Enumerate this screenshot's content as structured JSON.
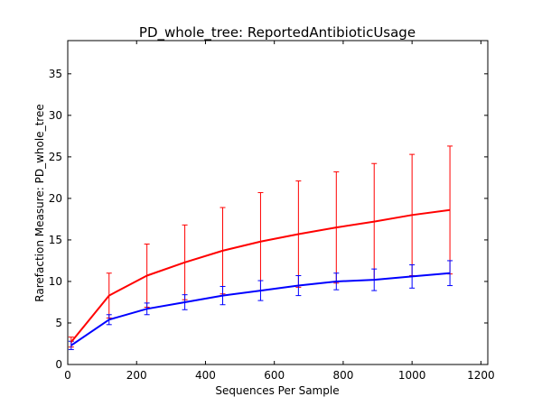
{
  "chart_data": {
    "type": "line",
    "title": "PD_whole_tree: ReportedAntibioticUsage",
    "xlabel": "Sequences Per Sample",
    "ylabel": "Rarefaction Measure: PD_whole_tree",
    "xlim": [
      0,
      1220
    ],
    "ylim": [
      0,
      39
    ],
    "x_ticks": [
      0,
      200,
      400,
      600,
      800,
      1000,
      1200
    ],
    "y_ticks": [
      0,
      5,
      10,
      15,
      20,
      25,
      30,
      35
    ],
    "grid": false,
    "x": [
      10,
      120,
      230,
      340,
      450,
      560,
      670,
      780,
      890,
      1000,
      1110
    ],
    "series": [
      {
        "color": "#ff0000",
        "values": [
          2.7,
          8.3,
          10.7,
          12.3,
          13.7,
          14.8,
          15.7,
          16.5,
          17.2,
          18.0,
          18.6
        ],
        "error": [
          0.6,
          2.7,
          3.8,
          4.5,
          5.2,
          5.9,
          6.4,
          6.7,
          7.0,
          7.3,
          7.7
        ]
      },
      {
        "color": "#0000ff",
        "values": [
          2.3,
          5.4,
          6.7,
          7.5,
          8.3,
          8.9,
          9.5,
          10.0,
          10.2,
          10.6,
          11.0
        ],
        "error": [
          0.5,
          0.6,
          0.7,
          0.9,
          1.1,
          1.2,
          1.2,
          1.0,
          1.3,
          1.4,
          1.5
        ]
      }
    ]
  }
}
